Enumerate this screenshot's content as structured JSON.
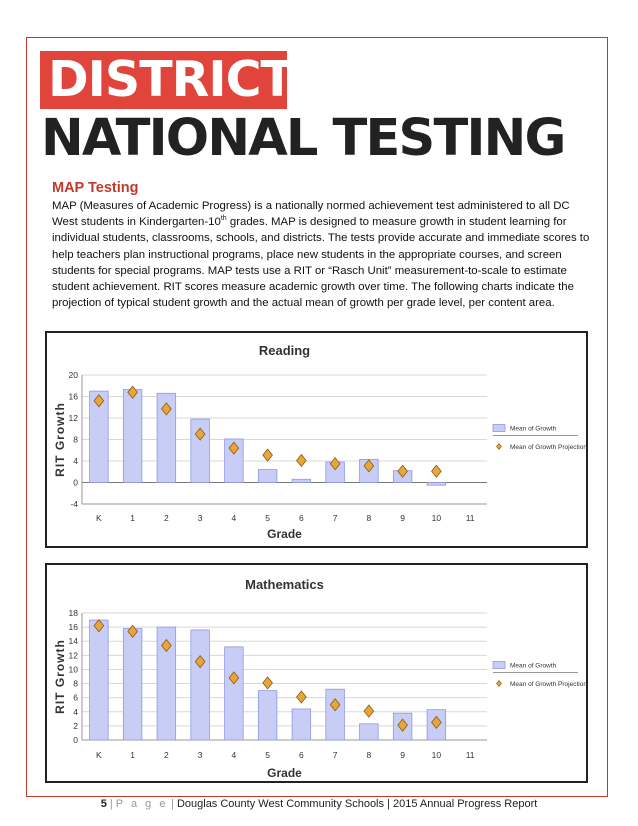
{
  "header": {
    "district": "DISTRICT",
    "national": "NATIONAL TESTING"
  },
  "section": {
    "title": "MAP Testing",
    "intro_part1": "MAP (Measures of Academic Progress) is a nationally normed achievement test administered to all DC West students in Kindergarten-10",
    "intro_sup": "th",
    "intro_part2": " grades.  MAP is designed to measure growth in student learning for individual students, classrooms, schools, and districts. The tests provide accurate and immediate scores to help teachers plan instructional programs, place new students in the appropriate courses, and screen students for special programs. MAP tests use a RIT or “Rasch Unit” measurement-to-scale to estimate student achievement.  RIT scores measure academic growth over time.  The following charts indicate the projection of typical student growth and the actual mean of growth per grade level, per content area."
  },
  "footer": {
    "page_number": "5",
    "sep": "|",
    "page_word": "P a g e",
    "text": "Douglas County West Community Schools | 2015 Annual Progress Report"
  },
  "colors": {
    "accent_red": "#e0443a",
    "bar_fill": "#c8cdf6",
    "bar_stroke": "#8f98e2",
    "diamond_fill": "#e8a53a",
    "diamond_stroke": "#8a5a10"
  },
  "chart_data": [
    {
      "type": "bar",
      "title": "Reading",
      "xlabel": "Grade",
      "ylabel": "RIT Growth",
      "categories": [
        "K",
        "1",
        "2",
        "3",
        "4",
        "5",
        "6",
        "7",
        "8",
        "9",
        "10",
        "11"
      ],
      "ylim": [
        -4,
        20
      ],
      "yticks": [
        "-4",
        "0",
        "4",
        "8",
        "12",
        "16",
        "20"
      ],
      "yticks_num": [
        -4,
        0,
        4,
        8,
        12,
        16,
        20
      ],
      "grid": true,
      "legend_position": "right",
      "series": [
        {
          "name": "Mean of Growth",
          "kind": "bar",
          "values": [
            17,
            17.3,
            16.6,
            11.8,
            8.1,
            2.4,
            0.6,
            3.8,
            4.3,
            2.2,
            -0.5,
            null
          ]
        },
        {
          "name": "Mean of Growth Projection",
          "kind": "marker",
          "values": [
            15.2,
            16.8,
            13.7,
            9,
            6.4,
            5.1,
            4.1,
            3.5,
            3.1,
            2.1,
            2.1,
            null
          ]
        }
      ]
    },
    {
      "type": "bar",
      "title": "Mathematics",
      "xlabel": "Grade",
      "ylabel": "RIT Growth",
      "categories": [
        "K",
        "1",
        "2",
        "3",
        "4",
        "5",
        "6",
        "7",
        "8",
        "9",
        "10",
        "11"
      ],
      "ylim": [
        0,
        18
      ],
      "yticks": [
        "0",
        "2",
        "4",
        "6",
        "8",
        "10",
        "12",
        "14",
        "16",
        "18"
      ],
      "yticks_num": [
        0,
        2,
        4,
        6,
        8,
        10,
        12,
        14,
        16,
        18
      ],
      "grid": true,
      "legend_position": "right",
      "series": [
        {
          "name": "Mean of Growth",
          "kind": "bar",
          "values": [
            17,
            15.8,
            16,
            15.6,
            13.2,
            7,
            4.4,
            7.2,
            2.3,
            3.8,
            4.3,
            null
          ]
        },
        {
          "name": "Mean of Growth Projection",
          "kind": "marker",
          "values": [
            16.2,
            15.4,
            13.4,
            11.1,
            8.8,
            8.1,
            6.1,
            5,
            4.1,
            2.1,
            2.5,
            null
          ]
        }
      ]
    }
  ]
}
